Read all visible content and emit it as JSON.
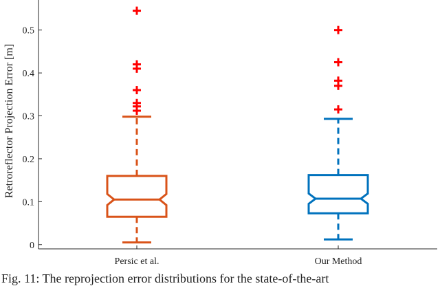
{
  "chart_data": {
    "type": "boxplot",
    "ylabel": "Retroreflector Projection Error [m]",
    "ylim": [
      -0.01,
      0.57
    ],
    "yticks": [
      0,
      0.1,
      0.2,
      0.3,
      0.4,
      0.5
    ],
    "ytick_labels": [
      "0",
      "0.1",
      "0.2",
      "0.3",
      "0.4",
      "0.5"
    ],
    "categories": [
      "Persic et al.",
      "Our Method"
    ],
    "notched": true,
    "grid": false,
    "series": [
      {
        "name": "Persic et al.",
        "color": "#d95319",
        "whisker_low": 0.005,
        "q1": 0.065,
        "median": 0.105,
        "q3": 0.16,
        "whisker_high": 0.298,
        "notch_low": 0.092,
        "notch_high": 0.118,
        "outliers": [
          0.545,
          0.42,
          0.41,
          0.36,
          0.33,
          0.322,
          0.312
        ]
      },
      {
        "name": "Our Method",
        "color": "#0072bd",
        "whisker_low": 0.012,
        "q1": 0.073,
        "median": 0.107,
        "q3": 0.162,
        "whisker_high": 0.293,
        "notch_low": 0.095,
        "notch_high": 0.119,
        "outliers": [
          0.5,
          0.425,
          0.382,
          0.37,
          0.315
        ]
      }
    ],
    "outlier_color": "#ff0000"
  },
  "caption": "Fig. 11: The reprojection error distributions for the state-of-the-art"
}
